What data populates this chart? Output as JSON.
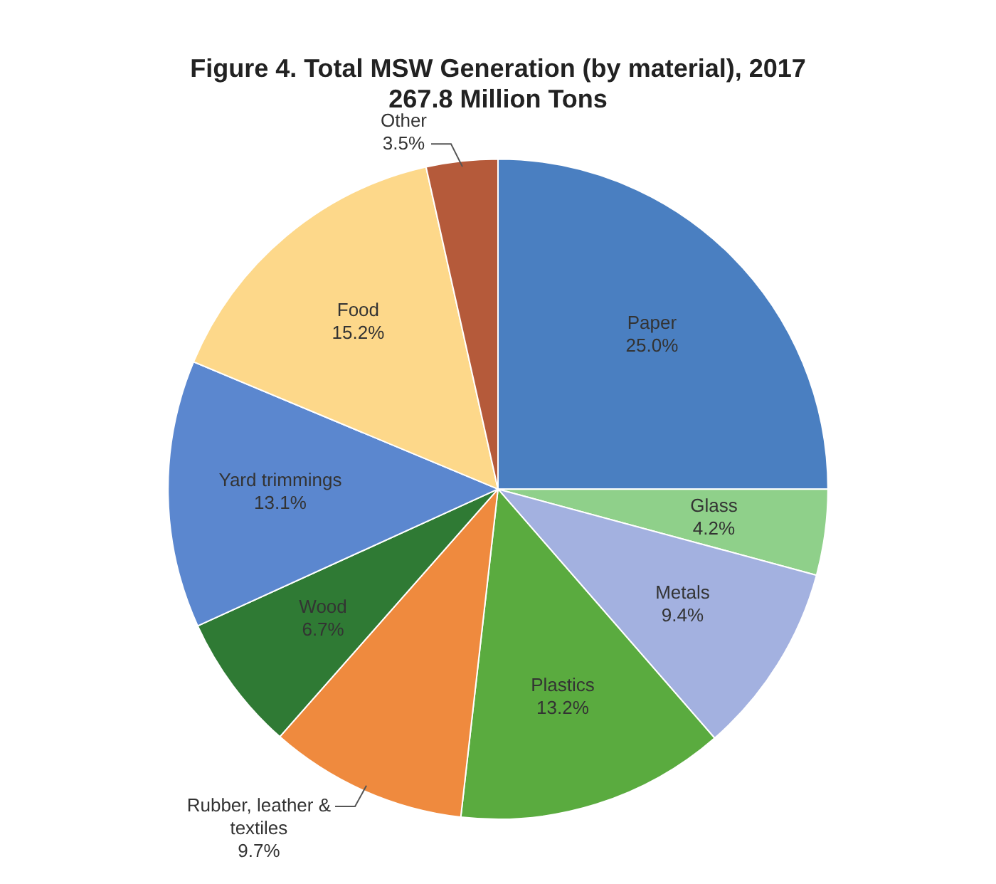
{
  "chart_data": {
    "type": "pie",
    "title": "Figure 4. Total MSW Generation (by material), 2017",
    "subtitle": "267.8 Million Tons",
    "categories": [
      "Paper",
      "Glass",
      "Metals",
      "Plastics",
      "Rubber, leather & textiles",
      "Wood",
      "Yard trimmings",
      "Food",
      "Other"
    ],
    "values": [
      25.0,
      4.2,
      9.4,
      13.2,
      9.7,
      6.7,
      13.1,
      15.2,
      3.5
    ],
    "value_labels": [
      "25.0%",
      "4.2%",
      "9.4%",
      "13.2%",
      "9.7%",
      "6.7%",
      "13.1%",
      "15.2%",
      "3.5%"
    ],
    "colors": [
      "#4a7fc1",
      "#8fd08a",
      "#a3b1e0",
      "#5aab3f",
      "#ef8a3e",
      "#2f7a34",
      "#5b87cf",
      "#fdd88a",
      "#b55a3a"
    ],
    "legend": false
  }
}
